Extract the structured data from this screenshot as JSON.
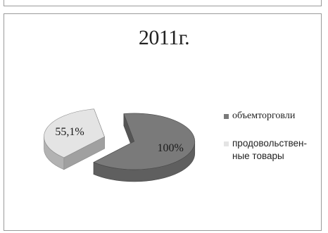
{
  "chart_data": {
    "type": "pie",
    "title": "2011г.",
    "categories": [
      "объем торговли",
      "продовольствен-ные товары"
    ],
    "series": [
      {
        "values": [
          100,
          55.1
        ],
        "data_labels": [
          "100%",
          "55,1%"
        ]
      }
    ],
    "legend": {
      "placement": "right",
      "items": [
        {
          "label": "объем торговли",
          "color": "#7a7a7a"
        },
        {
          "label": "продовольствен-ные товары",
          "color": "#e4e4e4"
        }
      ]
    },
    "style": "3d-exploded"
  },
  "legend_lines": {
    "item0": "объемторговли",
    "item1_line1": "продовольствен-",
    "item1_line2": "ные товары"
  }
}
